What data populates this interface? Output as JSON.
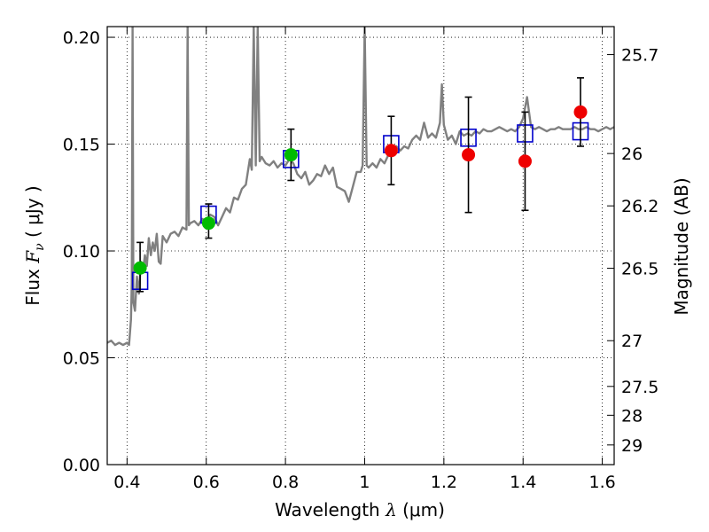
{
  "chart_data": {
    "type": "scatter",
    "x_label_prefix": "Wavelength  ",
    "x_label_symbol": "λ",
    "x_label_suffix": " (μm)",
    "y_label_prefix": "Flux  ",
    "y_label_symbol": "F",
    "y_label_sub": "ν",
    "y_label_suffix": "  ( μJy )",
    "y2_label": "Magnitude (AB)",
    "xlim": [
      0.35,
      1.63
    ],
    "ylim": [
      0.0,
      0.205
    ],
    "x_ticks": [
      0.4,
      0.6,
      0.8,
      1.0,
      1.2,
      1.4,
      1.6
    ],
    "x_tick_labels": [
      "0.4",
      "0.6",
      "0.8",
      "1",
      "1.2",
      "1.4",
      "1.6"
    ],
    "y_ticks": [
      0.0,
      0.05,
      0.1,
      0.15,
      0.2
    ],
    "y_tick_labels": [
      "0.00",
      "0.05",
      "0.10",
      "0.15",
      "0.20"
    ],
    "y2_ticks": [
      {
        "label": "25.7",
        "flux": 0.1919
      },
      {
        "label": "26",
        "flux": 0.1456
      },
      {
        "label": "26.2",
        "flux": 0.1211
      },
      {
        "label": "26.5",
        "flux": 0.0919
      },
      {
        "label": "27",
        "flux": 0.058
      },
      {
        "label": "27.5",
        "flux": 0.0366
      },
      {
        "label": "28",
        "flux": 0.0231
      },
      {
        "label": "29",
        "flux": 0.0092
      }
    ],
    "grid": true,
    "colors": {
      "spectrum": "#808080",
      "model_box": "#0000cc",
      "green_points": "#00bb00",
      "red_points": "#ee0000",
      "error_bars": "#000000"
    },
    "series": [
      {
        "kind": "line",
        "points": [
          [
            0.35,
            0.057
          ],
          [
            0.36,
            0.058
          ],
          [
            0.37,
            0.056
          ],
          [
            0.38,
            0.057
          ],
          [
            0.39,
            0.056
          ],
          [
            0.4,
            0.057
          ],
          [
            0.405,
            0.056
          ],
          [
            0.41,
            0.068
          ],
          [
            0.412,
            0.085
          ],
          [
            0.414,
            0.205
          ],
          [
            0.416,
            0.076
          ],
          [
            0.42,
            0.072
          ],
          [
            0.425,
            0.088
          ],
          [
            0.43,
            0.08
          ],
          [
            0.435,
            0.095
          ],
          [
            0.44,
            0.09
          ],
          [
            0.445,
            0.098
          ],
          [
            0.45,
            0.093
          ],
          [
            0.455,
            0.106
          ],
          [
            0.46,
            0.098
          ],
          [
            0.465,
            0.104
          ],
          [
            0.47,
            0.1
          ],
          [
            0.475,
            0.108
          ],
          [
            0.48,
            0.095
          ],
          [
            0.485,
            0.094
          ],
          [
            0.49,
            0.107
          ],
          [
            0.5,
            0.104
          ],
          [
            0.51,
            0.108
          ],
          [
            0.52,
            0.109
          ],
          [
            0.53,
            0.107
          ],
          [
            0.54,
            0.111
          ],
          [
            0.55,
            0.11
          ],
          [
            0.553,
            0.205
          ],
          [
            0.556,
            0.112
          ],
          [
            0.56,
            0.113
          ],
          [
            0.57,
            0.114
          ],
          [
            0.58,
            0.112
          ],
          [
            0.59,
            0.115
          ],
          [
            0.6,
            0.114
          ],
          [
            0.61,
            0.117
          ],
          [
            0.62,
            0.116
          ],
          [
            0.63,
            0.112
          ],
          [
            0.64,
            0.116
          ],
          [
            0.65,
            0.12
          ],
          [
            0.66,
            0.118
          ],
          [
            0.67,
            0.125
          ],
          [
            0.68,
            0.124
          ],
          [
            0.69,
            0.129
          ],
          [
            0.7,
            0.131
          ],
          [
            0.71,
            0.143
          ],
          [
            0.715,
            0.138
          ],
          [
            0.72,
            0.205
          ],
          [
            0.725,
            0.14
          ],
          [
            0.73,
            0.205
          ],
          [
            0.735,
            0.142
          ],
          [
            0.74,
            0.144
          ],
          [
            0.75,
            0.141
          ],
          [
            0.76,
            0.14
          ],
          [
            0.77,
            0.142
          ],
          [
            0.78,
            0.139
          ],
          [
            0.79,
            0.141
          ],
          [
            0.8,
            0.14
          ],
          [
            0.81,
            0.143
          ],
          [
            0.82,
            0.141
          ],
          [
            0.83,
            0.136
          ],
          [
            0.84,
            0.134
          ],
          [
            0.85,
            0.137
          ],
          [
            0.86,
            0.131
          ],
          [
            0.87,
            0.133
          ],
          [
            0.88,
            0.136
          ],
          [
            0.89,
            0.135
          ],
          [
            0.9,
            0.14
          ],
          [
            0.91,
            0.136
          ],
          [
            0.92,
            0.139
          ],
          [
            0.93,
            0.13
          ],
          [
            0.94,
            0.129
          ],
          [
            0.95,
            0.128
          ],
          [
            0.96,
            0.123
          ],
          [
            0.97,
            0.13
          ],
          [
            0.98,
            0.137
          ],
          [
            0.99,
            0.137
          ],
          [
            0.995,
            0.14
          ],
          [
            1.0,
            0.205
          ],
          [
            1.005,
            0.14
          ],
          [
            1.01,
            0.139
          ],
          [
            1.02,
            0.141
          ],
          [
            1.03,
            0.139
          ],
          [
            1.04,
            0.143
          ],
          [
            1.05,
            0.141
          ],
          [
            1.06,
            0.145
          ],
          [
            1.07,
            0.146
          ],
          [
            1.08,
            0.149
          ],
          [
            1.09,
            0.147
          ],
          [
            1.1,
            0.149
          ],
          [
            1.11,
            0.148
          ],
          [
            1.12,
            0.152
          ],
          [
            1.13,
            0.154
          ],
          [
            1.14,
            0.152
          ],
          [
            1.15,
            0.16
          ],
          [
            1.16,
            0.153
          ],
          [
            1.17,
            0.155
          ],
          [
            1.18,
            0.153
          ],
          [
            1.19,
            0.16
          ],
          [
            1.195,
            0.178
          ],
          [
            1.2,
            0.159
          ],
          [
            1.21,
            0.152
          ],
          [
            1.22,
            0.154
          ],
          [
            1.23,
            0.15
          ],
          [
            1.24,
            0.156
          ],
          [
            1.25,
            0.154
          ],
          [
            1.26,
            0.155
          ],
          [
            1.27,
            0.154
          ],
          [
            1.28,
            0.156
          ],
          [
            1.29,
            0.155
          ],
          [
            1.3,
            0.157
          ],
          [
            1.31,
            0.156
          ],
          [
            1.32,
            0.156
          ],
          [
            1.33,
            0.157
          ],
          [
            1.34,
            0.158
          ],
          [
            1.35,
            0.157
          ],
          [
            1.36,
            0.156
          ],
          [
            1.37,
            0.157
          ],
          [
            1.38,
            0.156
          ],
          [
            1.39,
            0.158
          ],
          [
            1.4,
            0.162
          ],
          [
            1.41,
            0.172
          ],
          [
            1.42,
            0.158
          ],
          [
            1.43,
            0.157
          ],
          [
            1.44,
            0.158
          ],
          [
            1.45,
            0.157
          ],
          [
            1.46,
            0.156
          ],
          [
            1.47,
            0.157
          ],
          [
            1.48,
            0.157
          ],
          [
            1.49,
            0.158
          ],
          [
            1.5,
            0.157
          ],
          [
            1.51,
            0.157
          ],
          [
            1.52,
            0.157
          ],
          [
            1.53,
            0.158
          ],
          [
            1.54,
            0.157
          ],
          [
            1.55,
            0.157
          ],
          [
            1.56,
            0.158
          ],
          [
            1.57,
            0.157
          ],
          [
            1.58,
            0.157
          ],
          [
            1.59,
            0.156
          ],
          [
            1.6,
            0.157
          ],
          [
            1.61,
            0.158
          ],
          [
            1.62,
            0.157
          ],
          [
            1.63,
            0.158
          ]
        ]
      },
      {
        "kind": "box",
        "points": [
          [
            0.433,
            0.086
          ],
          [
            0.606,
            0.117
          ],
          [
            0.814,
            0.143
          ],
          [
            1.067,
            0.15
          ],
          [
            1.262,
            0.153
          ],
          [
            1.405,
            0.155
          ],
          [
            1.545,
            0.156
          ]
        ]
      },
      {
        "kind": "errorbar",
        "points": [
          [
            0.433,
            0.092,
            0.081,
            0.104
          ],
          [
            0.606,
            0.113,
            0.106,
            0.122
          ],
          [
            0.814,
            0.145,
            0.133,
            0.157
          ],
          [
            1.067,
            0.147,
            0.131,
            0.163
          ],
          [
            1.262,
            0.145,
            0.118,
            0.172
          ],
          [
            1.405,
            0.142,
            0.119,
            0.165
          ],
          [
            1.545,
            0.165,
            0.149,
            0.181
          ]
        ]
      },
      {
        "kind": "circle_green",
        "points": [
          [
            0.433,
            0.092
          ],
          [
            0.606,
            0.113
          ],
          [
            0.814,
            0.145
          ]
        ]
      },
      {
        "kind": "circle_red",
        "points": [
          [
            1.067,
            0.147
          ],
          [
            1.262,
            0.145
          ],
          [
            1.405,
            0.142
          ],
          [
            1.545,
            0.165
          ]
        ]
      }
    ]
  }
}
